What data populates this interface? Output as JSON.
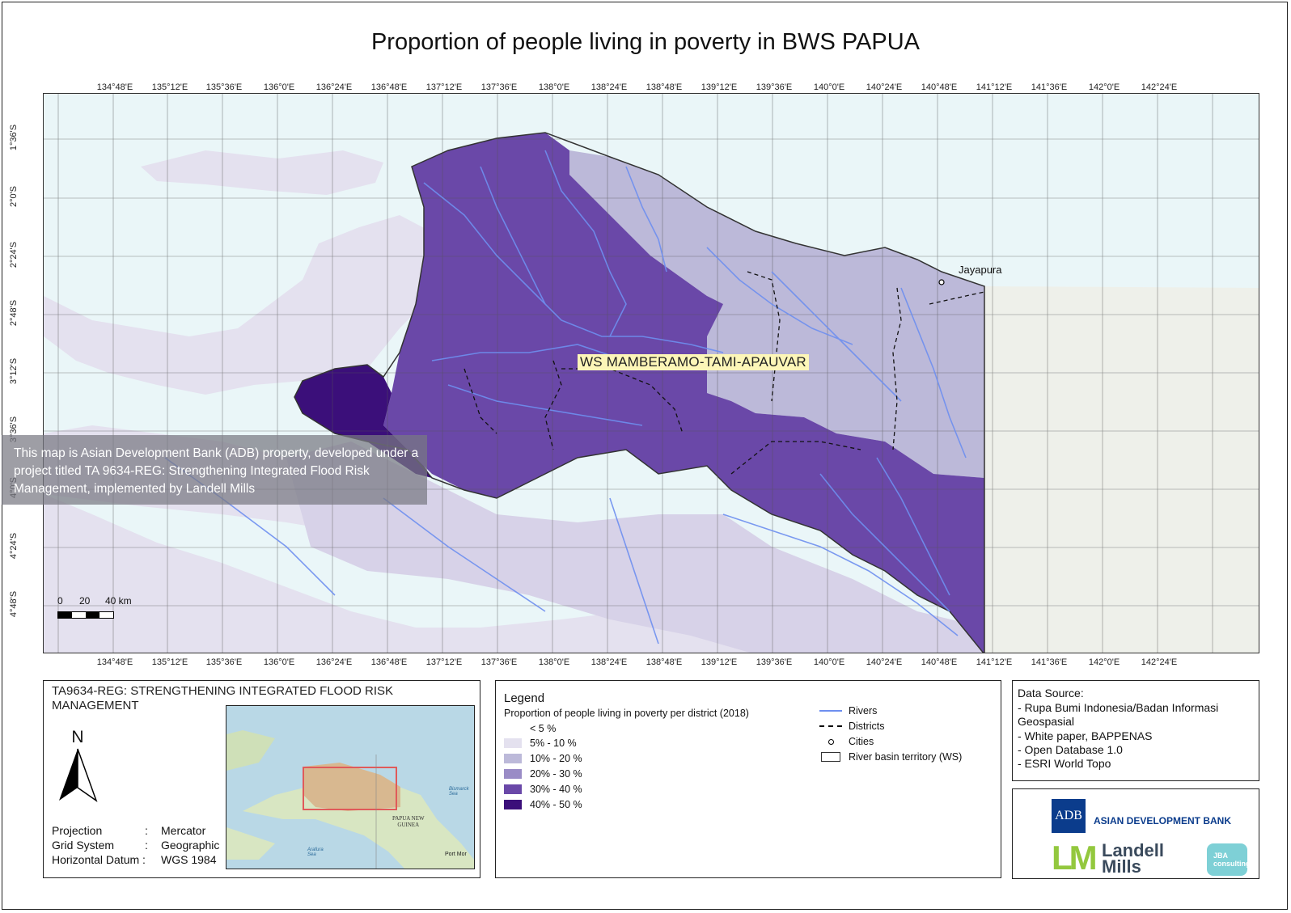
{
  "title": "Proportion of people living in poverty in BWS PAPUA",
  "map": {
    "longitude_labels": [
      "134°48'E",
      "135°12'E",
      "135°36'E",
      "136°0'E",
      "136°24'E",
      "136°48'E",
      "137°12'E",
      "137°36'E",
      "138°0'E",
      "138°24'E",
      "138°48'E",
      "139°12'E",
      "139°36'E",
      "140°0'E",
      "140°24'E",
      "140°48'E",
      "141°12'E",
      "141°36'E",
      "142°0'E",
      "142°24'E"
    ],
    "latitude_labels": [
      "1°36'S",
      "2°0'S",
      "2°24'S",
      "2°48'S",
      "3°12'S",
      "3°36'S",
      "4°0'S",
      "4°24'S",
      "4°48'S"
    ],
    "river_basin_label": "WS MAMBERAMO-TAMI-APAUVAR",
    "city_label": "Jayapura",
    "scale_bar": {
      "labels": [
        "0",
        "20",
        "40 km"
      ]
    }
  },
  "disclaimer": "This map is Asian Development Bank (ADB) property, developed under a project titled TA 9634-REG: Strengthening Integrated Flood Risk Management, implemented by Landell Mills",
  "title_box": {
    "project_title": "TA9634-REG: STRENGTHENING INTEGRATED FLOOD RISK MANAGEMENT",
    "north_label": "N",
    "projection": [
      {
        "key": "Projection",
        "value": "Mercator"
      },
      {
        "key": "Grid System",
        "value": "Geographic"
      },
      {
        "key": "Horizontal Datum :",
        "value": "WGS 1984"
      }
    ],
    "inset_labels": {
      "papua_new_guinea": "PAPUA NEW\nGUINEA",
      "bismarck_sea": "Bismarck\nSea",
      "arafura_sea": "Arafura\nSea",
      "port_moresby": "Port Mor"
    }
  },
  "legend": {
    "title": "Legend",
    "subtitle": "Proportion of people living in poverty per district (2018)",
    "classes": [
      {
        "label": "< 5 %",
        "color": "#ffffff"
      },
      {
        "label": "5% - 10 %",
        "color": "#e4e1ef"
      },
      {
        "label": "10% - 20 %",
        "color": "#bcb9d9"
      },
      {
        "label": "20% - 30 %",
        "color": "#9a8cc6"
      },
      {
        "label": "30% - 40 %",
        "color": "#6a48a8"
      },
      {
        "label": "40% - 50 %",
        "color": "#3b0f7a"
      }
    ],
    "symbols": [
      {
        "label": "Rivers",
        "color": "#6e8ff0"
      },
      {
        "label": "Districts",
        "color": "#000000"
      },
      {
        "label": "Cities",
        "color": "#000000"
      },
      {
        "label": "River basin territory (WS)",
        "color": "#333333"
      }
    ]
  },
  "data_source": {
    "title": "Data Source:",
    "items": [
      "- Rupa Bumi Indonesia/Badan Informasi Geospasial",
      "- White paper, BAPPENAS",
      "- Open Database 1.0",
      "- ESRI World Topo"
    ]
  },
  "logos": {
    "adb_mark": "ADB",
    "adb_name": "ASIAN DEVELOPMENT BANK",
    "lm_mark": "LM",
    "lm_name": "Landell\nMills",
    "jba": "JBA\nconsulting"
  }
}
